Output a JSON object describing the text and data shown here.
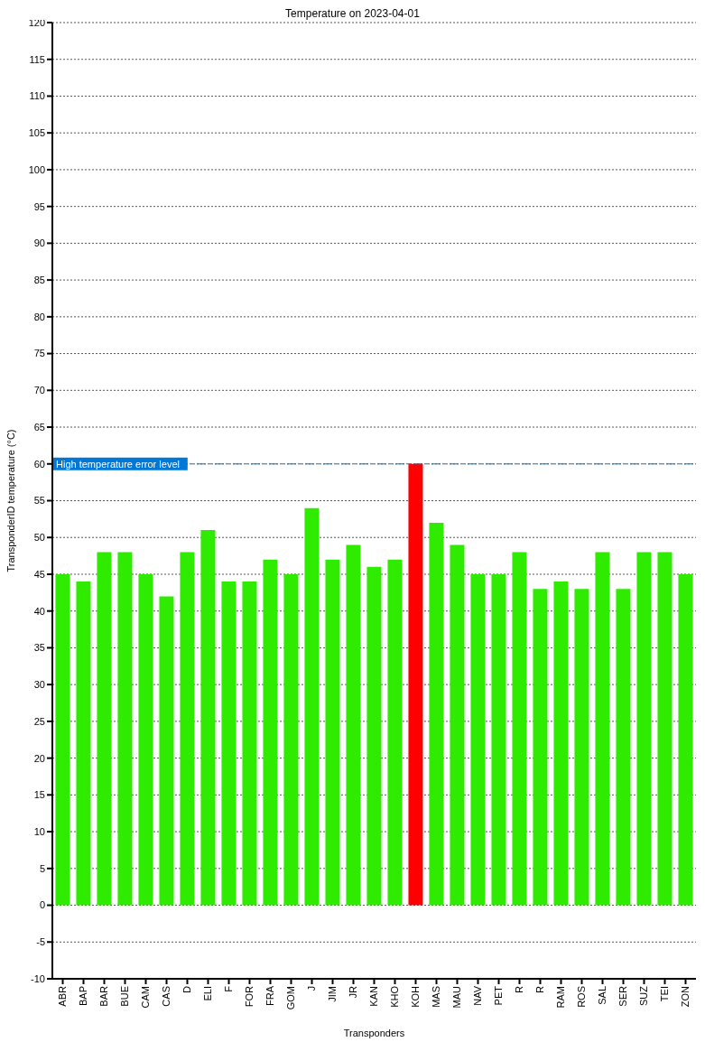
{
  "chart_data": {
    "type": "bar",
    "title": "Temperature on 2023-04-01",
    "xlabel": "Transponders",
    "ylabel": "TransponderID temperature (°C)",
    "categories": [
      "ABR",
      "BAP",
      "BAR",
      "BUE",
      "CAM",
      "CAS",
      "D",
      "ELI",
      "F",
      "FOR",
      "FRA",
      "GOM",
      "J",
      "JIM",
      "JR",
      "KAN",
      "KHO",
      "KOH",
      "MAS",
      "MAU",
      "NAV",
      "PET",
      "R",
      "R",
      "RAM",
      "ROS",
      "SAL",
      "SER",
      "SUZ",
      "TEI",
      "ZON"
    ],
    "values": [
      45,
      44,
      48,
      48,
      45,
      42,
      48,
      51,
      44,
      44,
      47,
      45,
      54,
      47,
      49,
      46,
      47,
      60,
      52,
      49,
      45,
      45,
      48,
      43,
      44,
      43,
      48,
      43,
      48,
      48,
      45
    ],
    "colors": [
      "#2eeb00",
      "#2eeb00",
      "#2eeb00",
      "#2eeb00",
      "#2eeb00",
      "#2eeb00",
      "#2eeb00",
      "#2eeb00",
      "#2eeb00",
      "#2eeb00",
      "#2eeb00",
      "#2eeb00",
      "#2eeb00",
      "#2eeb00",
      "#2eeb00",
      "#2eeb00",
      "#2eeb00",
      "#ff0000",
      "#2eeb00",
      "#2eeb00",
      "#2eeb00",
      "#2eeb00",
      "#2eeb00",
      "#2eeb00",
      "#2eeb00",
      "#2eeb00",
      "#2eeb00",
      "#2eeb00",
      "#2eeb00",
      "#2eeb00",
      "#2eeb00"
    ],
    "ylim": [
      -10,
      120
    ],
    "yticks": [
      -10,
      -5,
      0,
      5,
      10,
      15,
      20,
      25,
      30,
      35,
      40,
      45,
      50,
      55,
      60,
      65,
      70,
      75,
      80,
      85,
      90,
      95,
      100,
      105,
      110,
      115,
      120
    ],
    "grid": "y",
    "ref_lines": [
      {
        "axis": "y",
        "value": 60,
        "label": "High temperature error level",
        "color": "#0078d7",
        "line_style": "dashdot"
      }
    ]
  }
}
